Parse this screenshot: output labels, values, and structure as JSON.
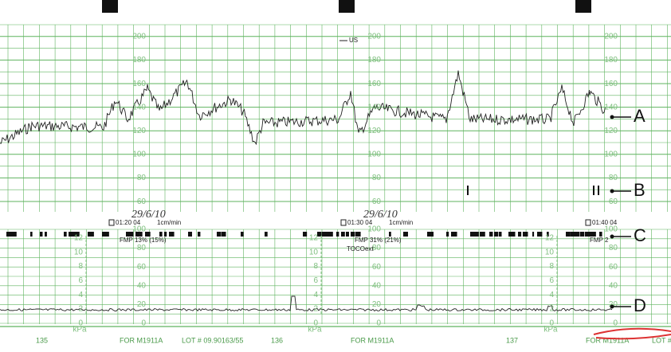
{
  "hr_scale": [
    "200",
    "180",
    "160",
    "140",
    "120",
    "100",
    "80",
    "60"
  ],
  "toco_scale": [
    "100",
    "80",
    "60",
    "40",
    "20",
    "0"
  ],
  "kpa_scale": [
    "12",
    "10",
    "8",
    "6",
    "4",
    "2",
    "0"
  ],
  "kpa_unit": "kPa",
  "trace_label": "US",
  "annotations": [
    {
      "time": "01:20 04",
      "speed": "1cm/min",
      "date": "29/6/10",
      "fmp": "FMP 13% (15%)"
    },
    {
      "time": "01:30 04",
      "speed": "1cm/min",
      "date": "29/6/10",
      "fmp": "FMP 31% (21%)",
      "toco": "TOCOext"
    },
    {
      "time": "01:40 04",
      "fmp": "FMP 2"
    }
  ],
  "markers": [
    "A",
    "B",
    "C",
    "D"
  ],
  "footer": {
    "pages": [
      "135",
      "136",
      "137"
    ],
    "form": "FOR M1911A",
    "lot": "LOT # 09.90163/55",
    "lot_cut": "LOT #"
  }
}
